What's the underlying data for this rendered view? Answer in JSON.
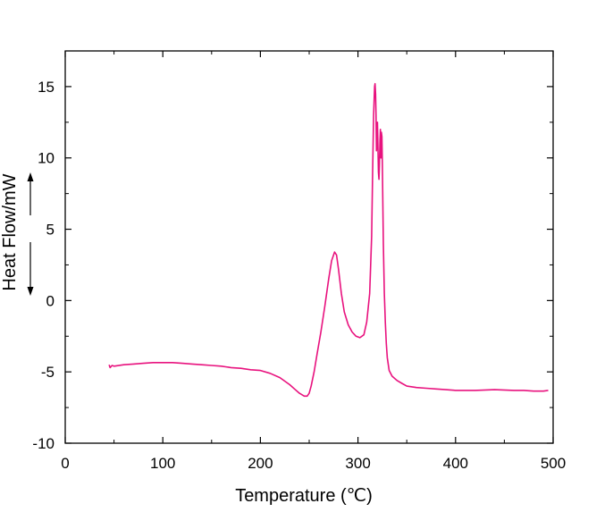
{
  "chart_data": {
    "type": "line",
    "title": "",
    "xlabel": "Temperature (℃)",
    "ylabel": "Heat Flow/mW",
    "xlim": [
      0,
      500
    ],
    "ylim": [
      -10,
      17.5
    ],
    "xticks": [
      0,
      100,
      200,
      300,
      400,
      500
    ],
    "xtick_labels": [
      "0",
      "100",
      "200",
      "300",
      "400",
      "500"
    ],
    "yticks": [
      -10,
      -5,
      0,
      5,
      10,
      15
    ],
    "ytick_labels": [
      "-10",
      "-5",
      "0",
      "5",
      "10",
      "15"
    ],
    "grid": false,
    "legend": "none",
    "line_color": "#e8127e",
    "annotation": "vertical double arrow beside y-axis label (up/down = exo/endo direction)",
    "series": [
      {
        "x": [
          45,
          46,
          48,
          50,
          60,
          70,
          80,
          90,
          100,
          110,
          120,
          130,
          140,
          150,
          160,
          170,
          180,
          190,
          200,
          210,
          220,
          230,
          235,
          240,
          245,
          248,
          250,
          252,
          255,
          258,
          262,
          266,
          270,
          273,
          276,
          278,
          280,
          283,
          286,
          290,
          294,
          298,
          302,
          306,
          309,
          312,
          314,
          315,
          316,
          317,
          317.5,
          318,
          318.5,
          319,
          319.5,
          320,
          321,
          321.5,
          322,
          322.5,
          323,
          323.5,
          324,
          324.5,
          325,
          325.5,
          326,
          327,
          328,
          329,
          330,
          332,
          335,
          340,
          345,
          350,
          360,
          370,
          380,
          390,
          400,
          420,
          440,
          460,
          470,
          480,
          490,
          495
        ],
        "y": [
          -4.5,
          -4.7,
          -4.55,
          -4.6,
          -4.5,
          -4.45,
          -4.4,
          -4.35,
          -4.35,
          -4.35,
          -4.4,
          -4.45,
          -4.5,
          -4.55,
          -4.6,
          -4.7,
          -4.75,
          -4.85,
          -4.9,
          -5.1,
          -5.4,
          -5.9,
          -6.2,
          -6.5,
          -6.7,
          -6.7,
          -6.5,
          -6.0,
          -5.0,
          -3.8,
          -2.2,
          -0.4,
          1.5,
          2.8,
          3.4,
          3.2,
          2.2,
          0.5,
          -0.8,
          -1.7,
          -2.2,
          -2.5,
          -2.6,
          -2.4,
          -1.5,
          0.5,
          4.5,
          9.0,
          13.0,
          15.0,
          15.2,
          14.5,
          13.0,
          10.5,
          11.5,
          12.5,
          9.0,
          8.5,
          9.5,
          11.2,
          12.0,
          10.0,
          11.8,
          11.5,
          9.5,
          7.0,
          4.0,
          0.5,
          -1.5,
          -3.0,
          -4.0,
          -4.9,
          -5.3,
          -5.6,
          -5.8,
          -6.0,
          -6.1,
          -6.15,
          -6.2,
          -6.25,
          -6.3,
          -6.3,
          -6.25,
          -6.3,
          -6.3,
          -6.35,
          -6.35,
          -6.3
        ]
      }
    ]
  }
}
